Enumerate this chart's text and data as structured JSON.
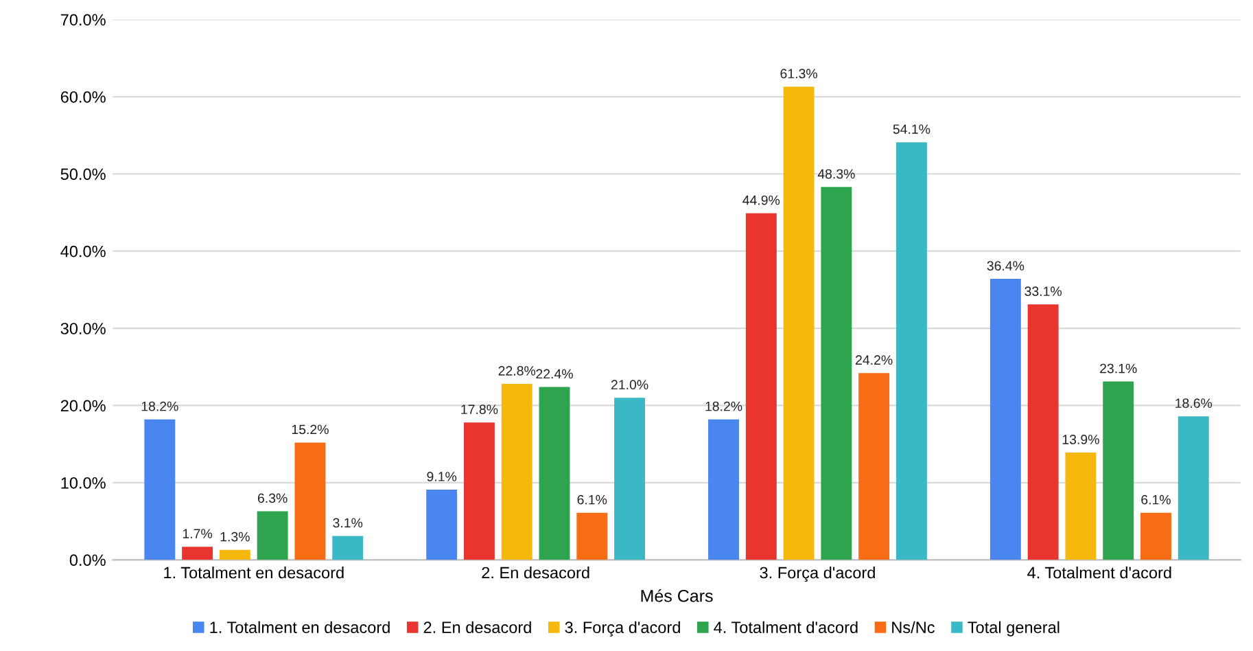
{
  "chart_data": {
    "type": "bar",
    "xlabel": "Més Cars",
    "categories": [
      "1. Totalment en desacord",
      "2. En desacord",
      "3. Força d'acord",
      "4. Totalment d'acord"
    ],
    "series": [
      {
        "name": "1. Totalment en desacord",
        "color": "#4a86f0",
        "values": [
          18.2,
          9.1,
          18.2,
          36.4
        ],
        "value_labels": [
          "18.2%",
          "9.1%",
          "18.2%",
          "36.4%"
        ]
      },
      {
        "name": "2. En desacord",
        "color": "#e8352e",
        "values": [
          1.7,
          17.8,
          44.9,
          33.1
        ],
        "value_labels": [
          "1.7%",
          "17.8%",
          "44.9%",
          "33.1%"
        ]
      },
      {
        "name": "3. Força d'acord",
        "color": "#f6b80c",
        "values": [
          1.3,
          22.8,
          61.3,
          13.9
        ],
        "value_labels": [
          "1.3%",
          "22.8%",
          "61.3%",
          "13.9%"
        ]
      },
      {
        "name": "4. Totalment d'acord",
        "color": "#2ea44f",
        "values": [
          6.3,
          22.4,
          48.3,
          23.1
        ],
        "value_labels": [
          "6.3%",
          "22.4%",
          "48.3%",
          "23.1%"
        ]
      },
      {
        "name": "Ns/Nc",
        "color": "#f86c16",
        "values": [
          15.2,
          6.1,
          24.2,
          6.1
        ],
        "value_labels": [
          "15.2%",
          "6.1%",
          "24.2%",
          "6.1%"
        ]
      },
      {
        "name": "Total general",
        "color": "#3ab8c6",
        "values": [
          3.1,
          21.0,
          54.1,
          18.6
        ],
        "value_labels": [
          "3.1%",
          "21.0%",
          "54.1%",
          "18.6%"
        ]
      }
    ],
    "ylim": [
      0,
      70
    ],
    "yticks": [
      {
        "value": 0,
        "label": "0.0%"
      },
      {
        "value": 10,
        "label": "10.0%"
      },
      {
        "value": 20,
        "label": "20.0%"
      },
      {
        "value": 30,
        "label": "30.0%"
      },
      {
        "value": 40,
        "label": "40.0%"
      },
      {
        "value": 50,
        "label": "50.0%"
      },
      {
        "value": 60,
        "label": "60.0%"
      },
      {
        "value": 70,
        "label": "70.0%"
      }
    ],
    "grid": "y",
    "legend": "bottom"
  }
}
